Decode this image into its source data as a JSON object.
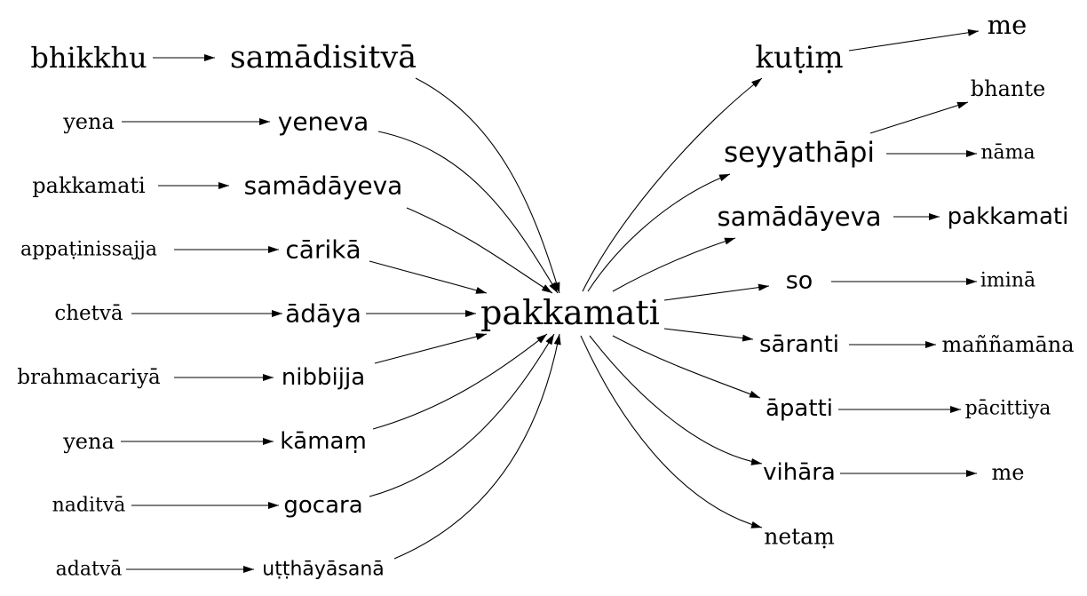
{
  "graph": {
    "center": "pakkamati",
    "nodes": [
      {
        "id": "pakkamati_c",
        "label": "pakkamati"
      },
      {
        "id": "bhikkhu",
        "label": "bhikkhu"
      },
      {
        "id": "samadisitva",
        "label": "samādisitvā"
      },
      {
        "id": "yena1",
        "label": "yena"
      },
      {
        "id": "yeneva",
        "label": "yeneva"
      },
      {
        "id": "pakkamati_l",
        "label": "pakkamati"
      },
      {
        "id": "samadayeva_l",
        "label": "samādāyeva"
      },
      {
        "id": "appatinissajja",
        "label": "appaṭinissajja"
      },
      {
        "id": "carika",
        "label": "cārikā"
      },
      {
        "id": "chetva",
        "label": "chetvā"
      },
      {
        "id": "adaya",
        "label": "ādāya"
      },
      {
        "id": "brahmacariya",
        "label": "brahmacariyā"
      },
      {
        "id": "nibbijja",
        "label": "nibbijja"
      },
      {
        "id": "yena2",
        "label": "yena"
      },
      {
        "id": "kamam",
        "label": "kāmaṃ"
      },
      {
        "id": "naditva",
        "label": "naditvā"
      },
      {
        "id": "gocara",
        "label": "gocara"
      },
      {
        "id": "adatva",
        "label": "adatvā"
      },
      {
        "id": "utthayasana",
        "label": "uṭṭhāyāsanā"
      },
      {
        "id": "kutim",
        "label": "kuṭiṃ"
      },
      {
        "id": "me1",
        "label": "me"
      },
      {
        "id": "seyyathapi",
        "label": "seyyathāpi"
      },
      {
        "id": "bhante",
        "label": "bhante"
      },
      {
        "id": "nama",
        "label": "nāma"
      },
      {
        "id": "samadayeva_r",
        "label": "samādāyeva"
      },
      {
        "id": "pakkamati_r",
        "label": "pakkamati"
      },
      {
        "id": "so",
        "label": "so"
      },
      {
        "id": "imina",
        "label": "iminā"
      },
      {
        "id": "saranti",
        "label": "sāranti"
      },
      {
        "id": "mannamana",
        "label": "maññamāna"
      },
      {
        "id": "apatti",
        "label": "āpatti"
      },
      {
        "id": "pacittiya",
        "label": "pācittiya"
      },
      {
        "id": "vihara",
        "label": "vihāra"
      },
      {
        "id": "me2",
        "label": "me"
      },
      {
        "id": "netam",
        "label": "netaṃ"
      }
    ],
    "edges": [
      {
        "from": "bhikkhu",
        "to": "samadisitva"
      },
      {
        "from": "yena1",
        "to": "yeneva"
      },
      {
        "from": "pakkamati_l",
        "to": "samadayeva_l"
      },
      {
        "from": "appatinissajja",
        "to": "carika"
      },
      {
        "from": "chetva",
        "to": "adaya"
      },
      {
        "from": "brahmacariya",
        "to": "nibbijja"
      },
      {
        "from": "yena2",
        "to": "kamam"
      },
      {
        "from": "naditva",
        "to": "gocara"
      },
      {
        "from": "adatva",
        "to": "utthayasana"
      },
      {
        "from": "samadisitva",
        "to": "pakkamati_c"
      },
      {
        "from": "yeneva",
        "to": "pakkamati_c"
      },
      {
        "from": "samadayeva_l",
        "to": "pakkamati_c"
      },
      {
        "from": "carika",
        "to": "pakkamati_c"
      },
      {
        "from": "adaya",
        "to": "pakkamati_c"
      },
      {
        "from": "nibbijja",
        "to": "pakkamati_c"
      },
      {
        "from": "kamam",
        "to": "pakkamati_c"
      },
      {
        "from": "gocara",
        "to": "pakkamati_c"
      },
      {
        "from": "utthayasana",
        "to": "pakkamati_c"
      },
      {
        "from": "pakkamati_c",
        "to": "kutim"
      },
      {
        "from": "pakkamati_c",
        "to": "seyyathapi"
      },
      {
        "from": "pakkamati_c",
        "to": "samadayeva_r"
      },
      {
        "from": "pakkamati_c",
        "to": "so"
      },
      {
        "from": "pakkamati_c",
        "to": "saranti"
      },
      {
        "from": "pakkamati_c",
        "to": "apatti"
      },
      {
        "from": "pakkamati_c",
        "to": "vihara"
      },
      {
        "from": "pakkamati_c",
        "to": "netam"
      },
      {
        "from": "kutim",
        "to": "me1"
      },
      {
        "from": "seyyathapi",
        "to": "bhante"
      },
      {
        "from": "seyyathapi",
        "to": "nama"
      },
      {
        "from": "samadayeva_r",
        "to": "pakkamati_r"
      },
      {
        "from": "so",
        "to": "imina"
      },
      {
        "from": "saranti",
        "to": "mannamana"
      },
      {
        "from": "apatti",
        "to": "pacittiya"
      },
      {
        "from": "vihara",
        "to": "me2"
      }
    ]
  }
}
